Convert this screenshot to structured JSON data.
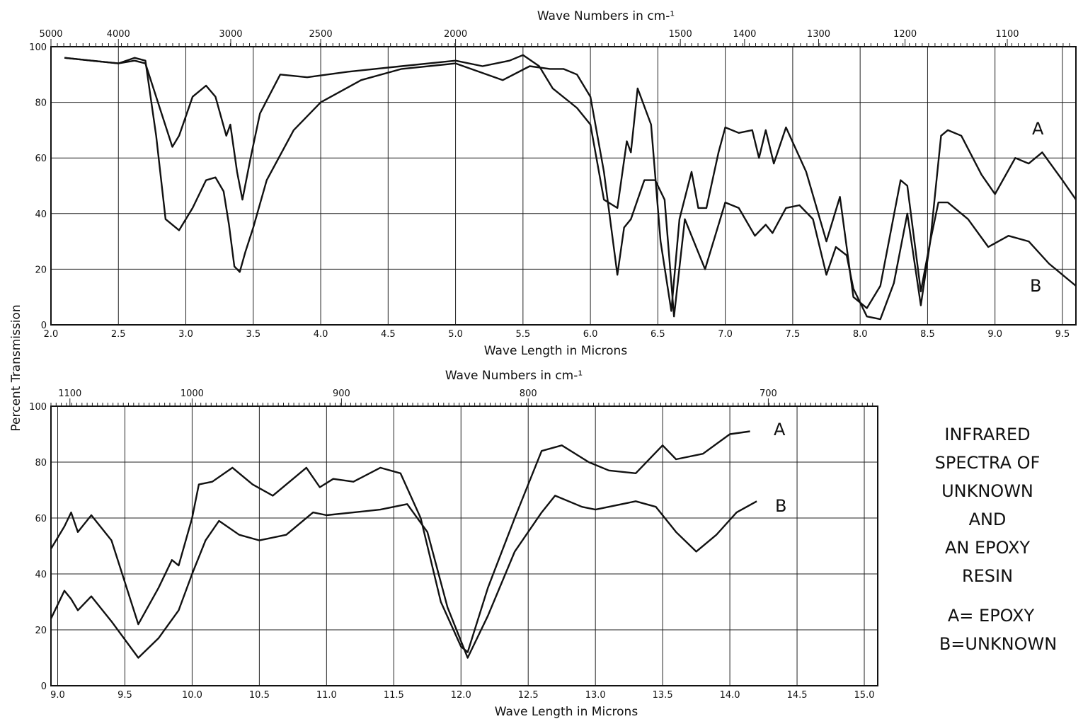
{
  "chart_data": [
    {
      "type": "line",
      "panel": "top",
      "top_axis_label": "Wave Numbers in cm-¹",
      "top_ticks": [
        {
          "label": "5000",
          "at": 2.0
        },
        {
          "label": "4000",
          "at": 2.5
        },
        {
          "label": "3000",
          "at": 3.333
        },
        {
          "label": "2500",
          "at": 4.0
        },
        {
          "label": "2000",
          "at": 5.0
        },
        {
          "label": "1500",
          "at": 6.667
        },
        {
          "label": "1400",
          "at": 7.143
        },
        {
          "label": "1300",
          "at": 7.692
        },
        {
          "label": "1200",
          "at": 8.333
        },
        {
          "label": "1100",
          "at": 9.091
        }
      ],
      "xlabel": "Wave Length in Microns",
      "xlim": [
        2.0,
        9.6
      ],
      "x_ticks": [
        "2.0",
        "2.5",
        "3.0",
        "3.5",
        "4.0",
        "4.5",
        "5.0",
        "5.5",
        "6.0",
        "6.5",
        "7.0",
        "7.5",
        "8.0",
        "8.5",
        "9.0",
        "9.5"
      ],
      "ylim": [
        0,
        100
      ],
      "y_ticks": [
        "0",
        "20",
        "40",
        "60",
        "80",
        "100"
      ],
      "grid": true,
      "series": [
        {
          "name": "A",
          "x": [
            2.1,
            2.3,
            2.5,
            2.62,
            2.7,
            2.8,
            2.9,
            2.95,
            3.05,
            3.15,
            3.22,
            3.3,
            3.33,
            3.38,
            3.42,
            3.48,
            3.55,
            3.7,
            3.9,
            4.2,
            4.6,
            5.0,
            5.2,
            5.4,
            5.5,
            5.62,
            5.72,
            5.9,
            6.0,
            6.1,
            6.2,
            6.27,
            6.3,
            6.35,
            6.45,
            6.52,
            6.6,
            6.66,
            6.75,
            6.8,
            6.86,
            6.95,
            7.0,
            7.1,
            7.2,
            7.25,
            7.3,
            7.36,
            7.45,
            7.6,
            7.75,
            7.85,
            7.95,
            8.05,
            8.15,
            8.3,
            8.35,
            8.45,
            8.52,
            8.6,
            8.65,
            8.75,
            8.9,
            9.0,
            9.15,
            9.25,
            9.35,
            9.5,
            9.6
          ],
          "y": [
            96,
            95,
            94,
            95,
            94,
            79,
            64,
            68,
            82,
            86,
            82,
            68,
            72,
            55,
            45,
            60,
            76,
            90,
            89,
            91,
            93,
            95,
            93,
            95,
            97,
            93,
            85,
            78,
            72,
            45,
            42,
            66,
            62,
            85,
            72,
            30,
            5,
            38,
            55,
            42,
            42,
            62,
            71,
            69,
            70,
            60,
            70,
            58,
            71,
            55,
            30,
            46,
            10,
            6,
            14,
            52,
            50,
            12,
            30,
            68,
            70,
            68,
            54,
            47,
            60,
            58,
            62,
            52,
            45
          ]
        },
        {
          "name": "B",
          "x": [
            2.1,
            2.3,
            2.5,
            2.62,
            2.7,
            2.78,
            2.85,
            2.95,
            3.05,
            3.15,
            3.22,
            3.28,
            3.32,
            3.36,
            3.4,
            3.44,
            3.5,
            3.6,
            3.8,
            4.0,
            4.3,
            4.6,
            5.0,
            5.35,
            5.55,
            5.7,
            5.8,
            5.9,
            6.0,
            6.1,
            6.2,
            6.25,
            6.3,
            6.4,
            6.48,
            6.55,
            6.62,
            6.7,
            6.85,
            7.0,
            7.1,
            7.22,
            7.3,
            7.35,
            7.45,
            7.55,
            7.65,
            7.75,
            7.82,
            7.9,
            7.95,
            8.05,
            8.15,
            8.25,
            8.35,
            8.45,
            8.52,
            8.58,
            8.65,
            8.8,
            8.95,
            9.1,
            9.25,
            9.4,
            9.6
          ],
          "y": [
            96,
            95,
            94,
            96,
            95,
            68,
            38,
            34,
            42,
            52,
            53,
            48,
            36,
            21,
            19,
            26,
            35,
            52,
            70,
            80,
            88,
            92,
            94,
            88,
            93,
            92,
            92,
            90,
            82,
            55,
            18,
            35,
            38,
            52,
            52,
            45,
            3,
            38,
            20,
            44,
            42,
            32,
            36,
            33,
            42,
            43,
            38,
            18,
            28,
            25,
            13,
            3,
            2,
            15,
            40,
            7,
            30,
            44,
            44,
            38,
            28,
            32,
            30,
            22,
            14
          ]
        }
      ],
      "curve_labels": [
        "A",
        "B"
      ]
    },
    {
      "type": "line",
      "panel": "bottom",
      "top_axis_label": "Wave Numbers in cm-¹",
      "top_ticks": [
        {
          "label": "1100",
          "at": 9.091
        },
        {
          "label": "1000",
          "at": 10.0
        },
        {
          "label": "900",
          "at": 11.111
        },
        {
          "label": "800",
          "at": 12.5
        },
        {
          "label": "700",
          "at": 14.286
        }
      ],
      "xlabel": "Wave Length in Microns",
      "xlim": [
        8.95,
        15.1
      ],
      "x_ticks": [
        "9.0",
        "9.5",
        "10.0",
        "10.5",
        "11.0",
        "11.5",
        "12.0",
        "12.5",
        "13.0",
        "13.5",
        "14.0",
        "14.5",
        "15.0"
      ],
      "ylim": [
        0,
        100
      ],
      "y_ticks": [
        "0",
        "20",
        "40",
        "60",
        "80",
        "100"
      ],
      "grid": true,
      "series": [
        {
          "name": "A",
          "x": [
            8.95,
            9.05,
            9.1,
            9.15,
            9.25,
            9.4,
            9.6,
            9.75,
            9.85,
            9.9,
            10.0,
            10.05,
            10.15,
            10.3,
            10.45,
            10.6,
            10.75,
            10.85,
            10.95,
            11.05,
            11.2,
            11.4,
            11.55,
            11.7,
            11.85,
            12.0,
            12.05,
            12.2,
            12.4,
            12.6,
            12.75,
            12.95,
            13.1,
            13.3,
            13.5,
            13.6,
            13.8,
            14.0,
            14.15
          ],
          "y": [
            49,
            57,
            62,
            55,
            61,
            52,
            22,
            35,
            45,
            43,
            60,
            72,
            73,
            78,
            72,
            68,
            74,
            78,
            71,
            74,
            73,
            78,
            76,
            60,
            30,
            14,
            12,
            35,
            60,
            84,
            86,
            80,
            77,
            76,
            86,
            81,
            83,
            90,
            91
          ]
        },
        {
          "name": "B",
          "x": [
            8.95,
            9.05,
            9.1,
            9.15,
            9.25,
            9.4,
            9.6,
            9.75,
            9.9,
            10.0,
            10.1,
            10.2,
            10.35,
            10.5,
            10.7,
            10.9,
            11.0,
            11.2,
            11.4,
            11.6,
            11.75,
            11.9,
            12.05,
            12.2,
            12.4,
            12.6,
            12.7,
            12.9,
            13.0,
            13.3,
            13.45,
            13.6,
            13.75,
            13.9,
            14.05,
            14.2
          ],
          "y": [
            24,
            34,
            31,
            27,
            32,
            23,
            10,
            17,
            27,
            40,
            52,
            59,
            54,
            52,
            54,
            62,
            61,
            62,
            63,
            65,
            55,
            28,
            10,
            25,
            48,
            62,
            68,
            64,
            63,
            66,
            64,
            55,
            48,
            54,
            62,
            66
          ]
        }
      ],
      "curve_labels": [
        "A",
        "B"
      ]
    }
  ],
  "ylabel": "Percent Transmission",
  "side_title_lines": [
    "INFRARED",
    "SPECTRA OF",
    "UNKNOWN",
    "AND",
    "AN EPOXY",
    "RESIN"
  ],
  "legend_lines": [
    "A= EPOXY",
    "B=UNKNOWN"
  ]
}
